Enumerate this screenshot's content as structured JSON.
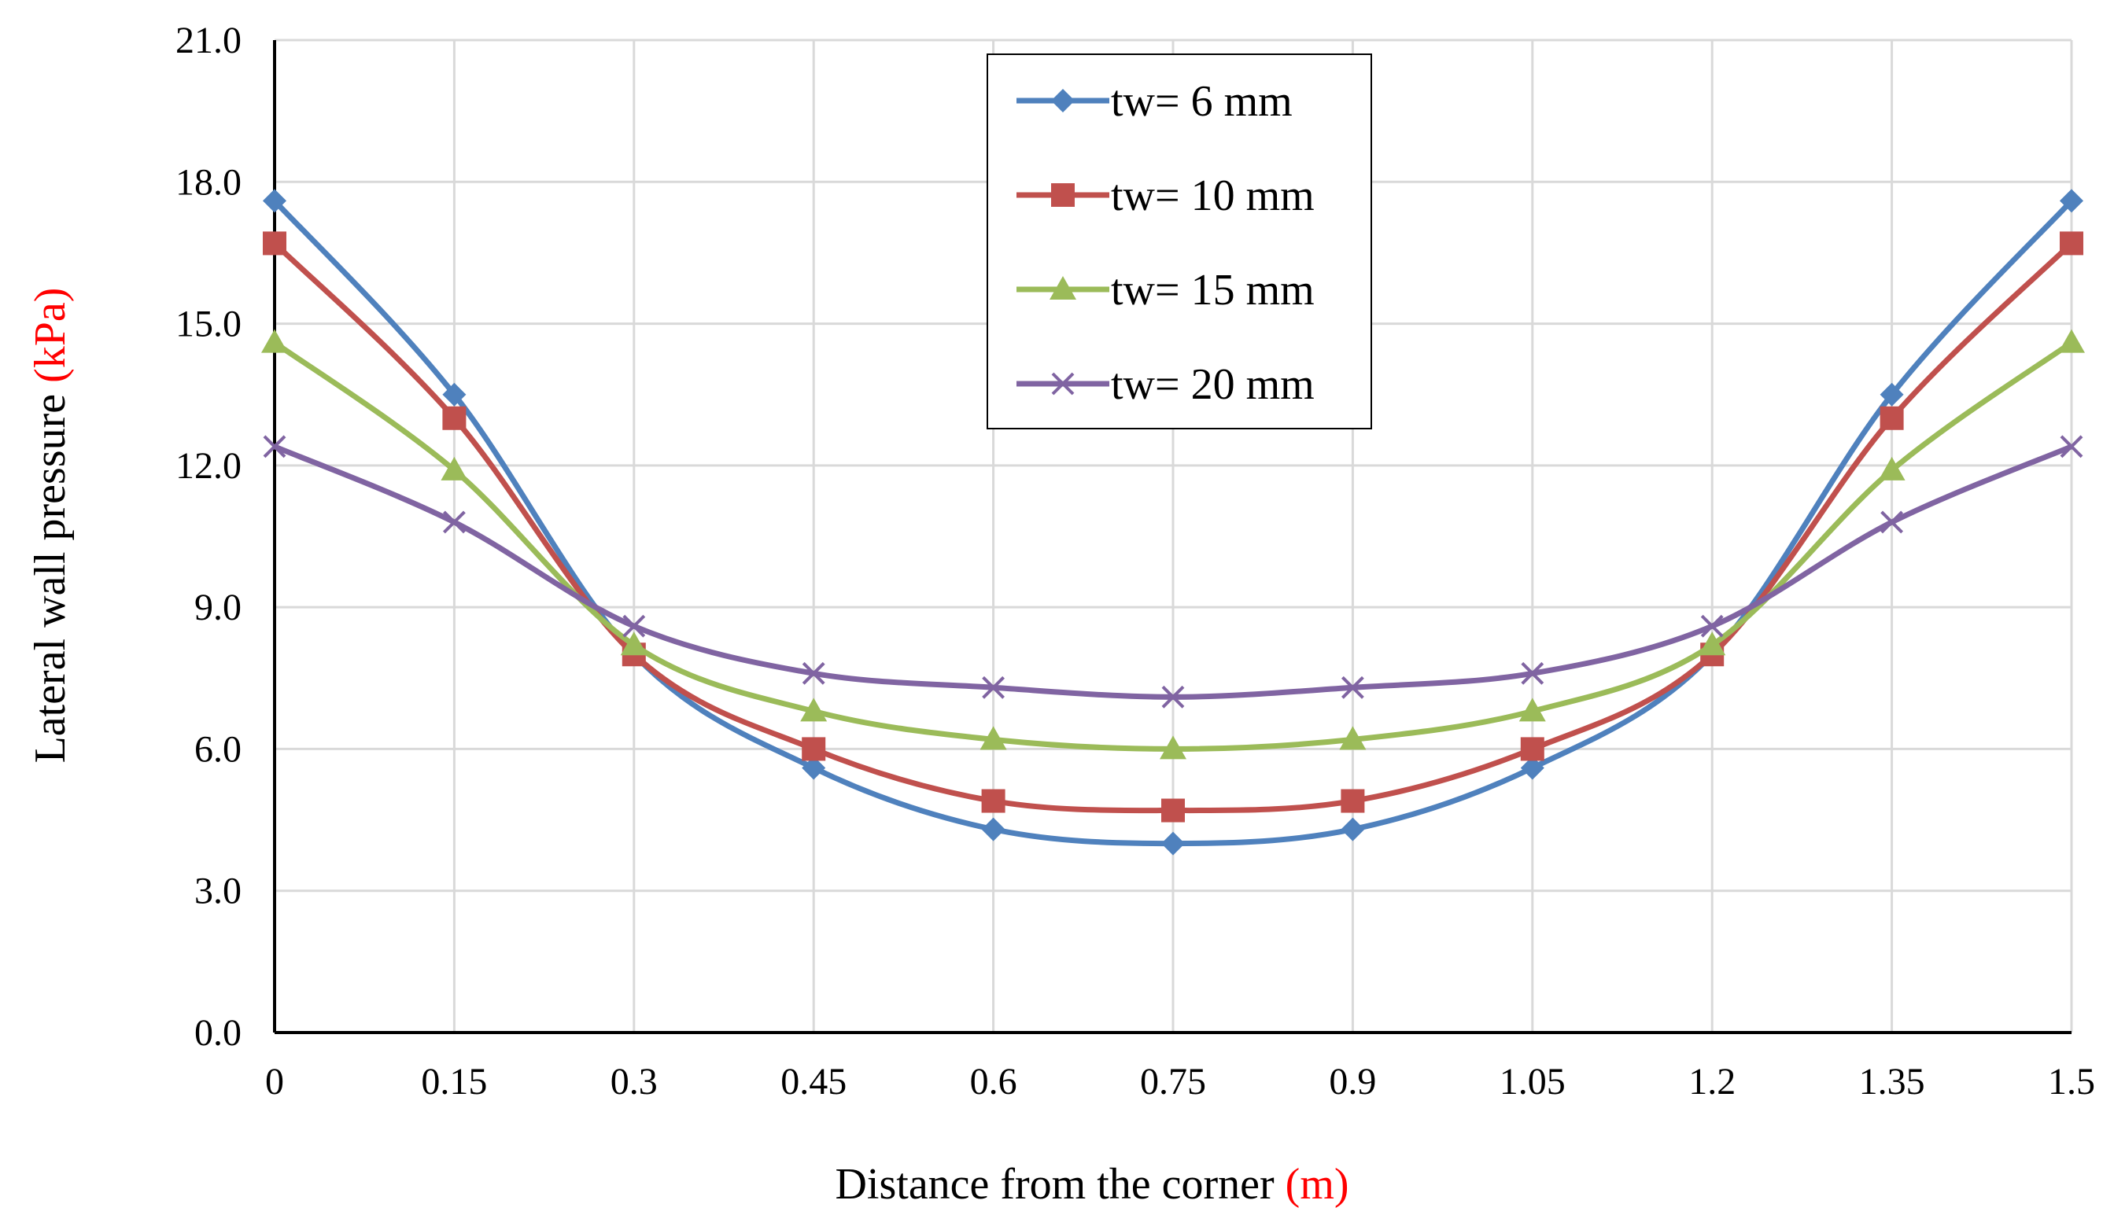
{
  "chart_data": {
    "type": "line",
    "title": "",
    "xlabel": "Distance from the corner",
    "xlabel_unit": "(m)",
    "ylabel": "Lateral wall pressure",
    "ylabel_unit": "(kPa)",
    "unit_color": "#FF0000",
    "categories": [
      "0",
      "0.15",
      "0.3",
      "0.45",
      "0.6",
      "0.75",
      "0.9",
      "1.05",
      "1.2",
      "1.35",
      "1.5"
    ],
    "x": [
      0,
      0.15,
      0.3,
      0.45,
      0.6,
      0.75,
      0.9,
      1.05,
      1.2,
      1.35,
      1.5
    ],
    "ylim": [
      0,
      21
    ],
    "yticks": [
      "0.0",
      "3.0",
      "6.0",
      "9.0",
      "12.0",
      "15.0",
      "18.0",
      "21.0"
    ],
    "grid": true,
    "legend_position": "top-center",
    "series": [
      {
        "name": "tw= 6 mm",
        "color": "#4F81BD",
        "marker": "diamond",
        "values": [
          17.6,
          13.5,
          8.0,
          5.6,
          4.3,
          4.0,
          4.3,
          5.6,
          8.0,
          13.5,
          17.6
        ]
      },
      {
        "name": "tw= 10 mm",
        "color": "#C0504D",
        "marker": "square",
        "values": [
          16.7,
          13.0,
          8.0,
          6.0,
          4.9,
          4.7,
          4.9,
          6.0,
          8.0,
          13.0,
          16.7
        ]
      },
      {
        "name": "tw= 15 mm",
        "color": "#9BBB59",
        "marker": "triangle",
        "values": [
          14.6,
          11.9,
          8.2,
          6.8,
          6.2,
          6.0,
          6.2,
          6.8,
          8.2,
          11.9,
          14.6
        ]
      },
      {
        "name": "tw= 20 mm",
        "color": "#8064A2",
        "marker": "x",
        "values": [
          12.4,
          10.8,
          8.6,
          7.6,
          7.3,
          7.1,
          7.3,
          7.6,
          8.6,
          10.8,
          12.4
        ]
      }
    ]
  }
}
